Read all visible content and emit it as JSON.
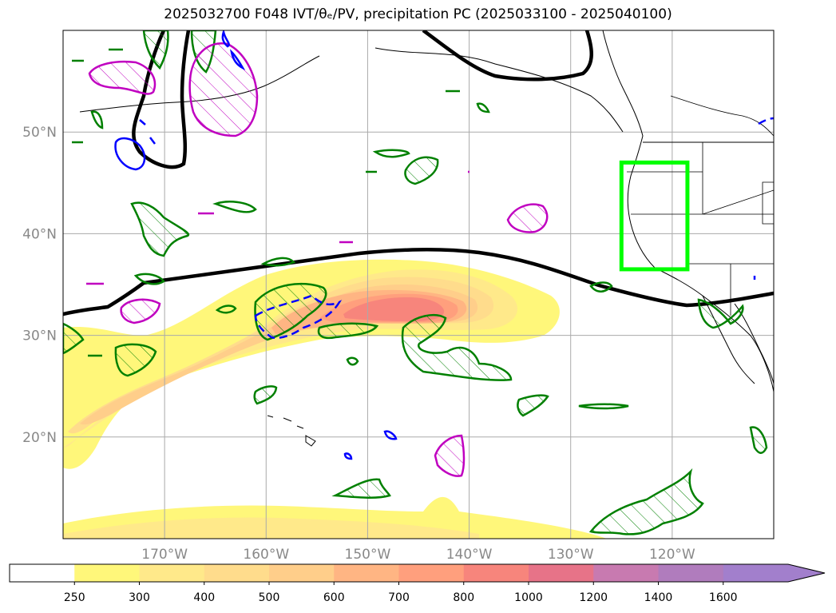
{
  "title": "2025032700 F048 IVT/θₑ/PV, precipitation PC (2025033100 - 2025040100)",
  "chart_data": {
    "type": "map-contour",
    "title": "2025032700 F048 IVT/θₑ/PV, precipitation PC (2025033100 - 2025040100)",
    "lon_range": [
      -180,
      -110
    ],
    "lat_range": [
      10,
      60
    ],
    "grid": true,
    "lon_ticks": [
      {
        "lon": -170,
        "label": "170°W"
      },
      {
        "lon": -160,
        "label": "160°W"
      },
      {
        "lon": -150,
        "label": "150°W"
      },
      {
        "lon": -140,
        "label": "140°W"
      },
      {
        "lon": -130,
        "label": "130°W"
      },
      {
        "lon": -120,
        "label": "120°W"
      }
    ],
    "lat_ticks": [
      {
        "lat": 20,
        "label": "20°N"
      },
      {
        "lat": 30,
        "label": "30°N"
      },
      {
        "lat": 40,
        "label": "40°N"
      },
      {
        "lat": 50,
        "label": "50°N"
      }
    ],
    "ivt_levels": [
      250,
      300,
      400,
      500,
      600,
      700,
      800,
      1000,
      1200,
      1400,
      1600
    ],
    "ivt_colors": [
      "#ffffff",
      "#fff77a",
      "#ffe98a",
      "#ffdc8c",
      "#ffce8a",
      "#ffb583",
      "#ff9f7d",
      "#f7857c",
      "#e77388",
      "#c87ab0",
      "#b07cbd",
      "#a27fcc"
    ],
    "colorbar_extend": "max",
    "colorbar_tick_labels": [
      "250",
      "300",
      "400",
      "500",
      "600",
      "700",
      "800",
      "1000",
      "1200",
      "1400",
      "1600"
    ],
    "focus_box": {
      "lon_range": [
        -125,
        -118.5
      ],
      "lat_range": [
        36.5,
        47
      ],
      "color": "#00ff00"
    },
    "ivt_colors_note": "",
    "theta_e_line_color": "#000000",
    "pv_positive_color": "#008000",
    "precip_contour_colors": [
      "#c000c0",
      "#0000ff"
    ]
  }
}
